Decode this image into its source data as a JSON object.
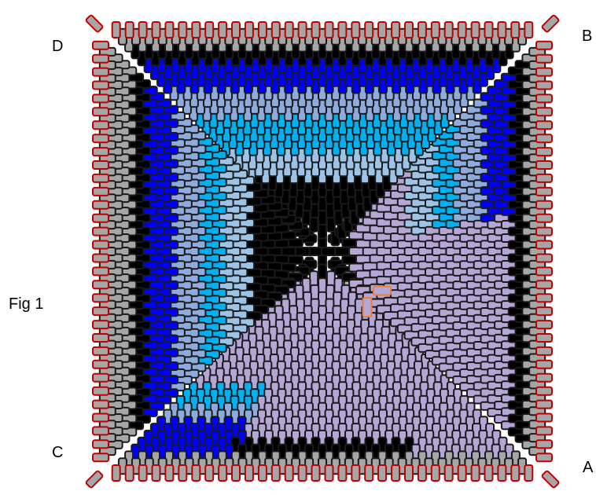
{
  "labels": {
    "corner_top_left": "D",
    "corner_top_right": "B",
    "corner_bottom_left": "C",
    "corner_bottom_right": "A",
    "figure": "Fig 1"
  },
  "palette": {
    "outline": "#1a1a1a",
    "edge_outline": "#c00000",
    "highlight_outline": "#ed7d31",
    "gray": "#a6a6a6",
    "black": "#000000",
    "blue": "#0000ff",
    "light_blue": "#8faadc",
    "cyan": "#00b0f0",
    "pale_blue": "#9dc3e6",
    "lavender": "#b4a7d6"
  }
}
